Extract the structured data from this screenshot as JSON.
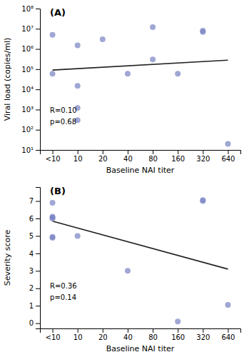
{
  "chart_data": [
    {
      "type": "scatter",
      "title": "(A)",
      "categories": [
        "<10",
        "10",
        "20",
        "40",
        "80",
        "160",
        "320",
        "640"
      ],
      "series": [
        {
          "type": "scatter",
          "marker": "circle",
          "color": "#7b85c4",
          "x": [
            "<10",
            "<10",
            "10",
            "10",
            "10",
            "10",
            "20",
            "40",
            "80",
            "80",
            "160",
            "320",
            "320",
            "640"
          ],
          "values": [
            5000000,
            60000,
            1500000,
            15000,
            1200,
            300,
            3000000,
            60000,
            300000,
            12000000,
            60000,
            8000000,
            7000000,
            20
          ]
        },
        {
          "type": "line",
          "line_style": "solid",
          "color": "#222222",
          "x": [
            "<10",
            "640"
          ],
          "values": [
            90000,
            280000
          ]
        }
      ],
      "xlabel": "Baseline NAI titer",
      "ylabel": "Viral load (copies/ml)",
      "annotations": [
        "R=0.10",
        "p=0.68"
      ],
      "log": "y",
      "ylim": [
        10,
        100000000
      ],
      "yticks": [
        {
          "value": 10,
          "label": "10¹"
        },
        {
          "value": 100,
          "label": "10²"
        },
        {
          "value": 1000,
          "label": "10³"
        },
        {
          "value": 10000,
          "label": "10⁴"
        },
        {
          "value": 100000,
          "label": "10⁵"
        },
        {
          "value": 1000000,
          "label": "10⁶"
        },
        {
          "value": 10000000,
          "label": "10⁷"
        },
        {
          "value": 100000000,
          "label": "10⁸"
        }
      ],
      "grid": false
    },
    {
      "type": "scatter",
      "title": "(B)",
      "categories": [
        "<10",
        "10",
        "20",
        "40",
        "80",
        "160",
        "320",
        "640"
      ],
      "series": [
        {
          "type": "scatter",
          "marker": "circle",
          "color": "#7b85c4",
          "x": [
            "<10",
            "<10",
            "<10",
            "<10",
            "<10",
            "<10",
            "10",
            "40",
            "160",
            "320",
            "320",
            "640"
          ],
          "values": [
            6.9,
            6.1,
            6.05,
            6.0,
            4.95,
            4.9,
            5.0,
            3.0,
            0.1,
            7.05,
            7.0,
            1.05
          ]
        },
        {
          "type": "line",
          "line_style": "solid",
          "color": "#222222",
          "x": [
            "<10",
            "640"
          ],
          "values": [
            5.85,
            3.1
          ]
        }
      ],
      "xlabel": "Baseline NAI titer",
      "ylabel": "Severity score",
      "annotations": [
        "R=0.36",
        "p=0.14"
      ],
      "ylim": [
        -0.3,
        7.8
      ],
      "yticks": [
        0,
        1,
        2,
        3,
        4,
        5,
        6,
        7
      ],
      "grid": false
    }
  ]
}
